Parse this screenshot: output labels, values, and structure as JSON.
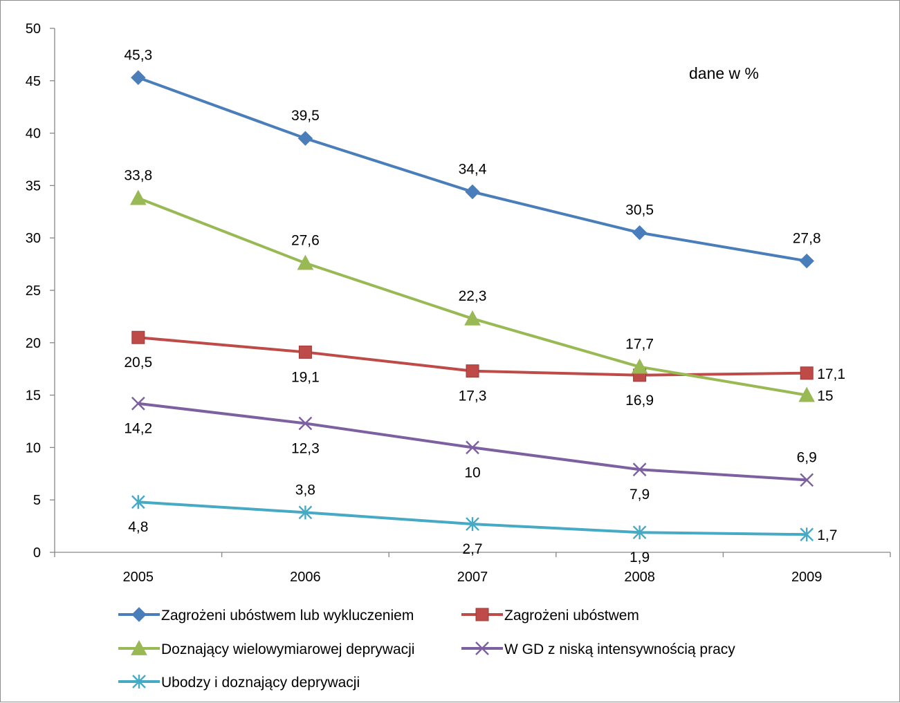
{
  "chart_data": {
    "type": "line",
    "title": "",
    "xlabel": "",
    "ylabel": "",
    "annotation": "dane w %",
    "categories": [
      "2005",
      "2006",
      "2007",
      "2008",
      "2009"
    ],
    "ylim": [
      0,
      50
    ],
    "yticks": [
      0,
      5,
      10,
      15,
      20,
      25,
      30,
      35,
      40,
      45,
      50
    ],
    "grid": false,
    "legend_position": "bottom",
    "series": [
      {
        "name": "Zagrożeni ubóstwem lub wykluczeniem",
        "values": [
          45.3,
          39.5,
          34.4,
          30.5,
          27.8
        ],
        "labels": [
          "45,3",
          "39,5",
          "34,4",
          "30,5",
          "27,8"
        ],
        "color": "#4a7ebb",
        "marker": "diamond"
      },
      {
        "name": "Zagrożeni ubóstwem",
        "values": [
          20.5,
          19.1,
          17.3,
          16.9,
          17.1
        ],
        "labels": [
          "20,5",
          "19,1",
          "17,3",
          "16,9",
          "17,1"
        ],
        "color": "#be4b48",
        "marker": "square"
      },
      {
        "name": "Doznający wielowymiarowej deprywacji",
        "values": [
          33.8,
          27.6,
          22.3,
          17.7,
          15
        ],
        "labels": [
          "33,8",
          "27,6",
          "22,3",
          "17,7",
          "15"
        ],
        "color": "#98b954",
        "marker": "triangle"
      },
      {
        "name": "W GD z niską intensywnością pracy",
        "values": [
          14.2,
          12.3,
          10,
          7.9,
          6.9
        ],
        "labels": [
          "14,2",
          "12,3",
          "10",
          "7,9",
          "6,9"
        ],
        "color": "#7d60a0",
        "marker": "x"
      },
      {
        "name": "Ubodzy i doznający deprywacji",
        "values": [
          4.8,
          3.8,
          2.7,
          1.9,
          1.7
        ],
        "labels": [
          "4,8",
          "3,8",
          "2,7",
          "1,9",
          "1,7"
        ],
        "color": "#46aac5",
        "marker": "star"
      }
    ]
  }
}
